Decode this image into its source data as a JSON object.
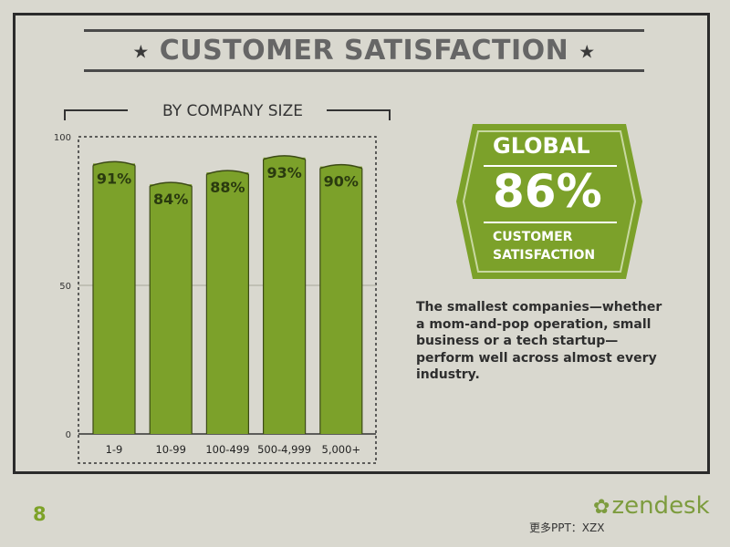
{
  "page": {
    "title": "CUSTOMER SATISFACTION",
    "star_glyph": "★",
    "page_number": "8",
    "footer_note": "更多PPT：XZX",
    "logo_text": "zendesk",
    "logo_icon": "zendesk-knot-icon"
  },
  "chart_data": {
    "type": "bar",
    "title": "BY COMPANY SIZE",
    "categories": [
      "1-9",
      "10-99",
      "100-499",
      "500-4,999",
      "5,000+"
    ],
    "values": [
      91,
      84,
      88,
      93,
      90
    ],
    "data_labels": [
      "91%",
      "84%",
      "88%",
      "93%",
      "90%"
    ],
    "y_ticks": [
      "0",
      "50",
      "100"
    ],
    "ylim": [
      0,
      100
    ],
    "grid": true,
    "bar_color": "#7ca12a"
  },
  "global_badge": {
    "heading": "GLOBAL",
    "value": "86%",
    "caption": "CUSTOMER SATISFACTION",
    "color": "#7ca12a"
  },
  "description": "The smallest companies—whether a mom-and-pop operation, small business or a tech startup—perform well across almost every industry."
}
